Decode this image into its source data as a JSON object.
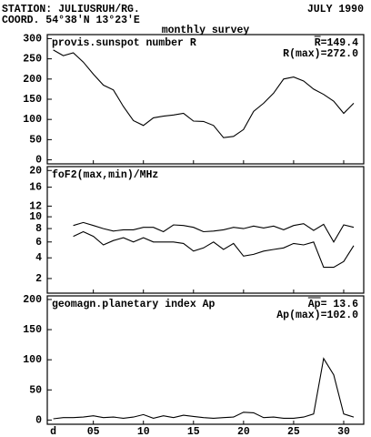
{
  "header": {
    "station": "STATION: JULIUSRUH/RG.",
    "date": "JULY 1990",
    "coord": "COORD. 54°38'N 13°23'E",
    "subtitle": "monthly survey"
  },
  "chart_data": [
    {
      "type": "line",
      "title": "provis.sunspot number R",
      "annotations": [
        "R=149.4",
        "R(max)=272.0"
      ],
      "x": [
        1,
        2,
        3,
        4,
        5,
        6,
        7,
        8,
        9,
        10,
        11,
        12,
        13,
        14,
        15,
        16,
        17,
        18,
        19,
        20,
        21,
        22,
        23,
        24,
        25,
        26,
        27,
        28,
        29,
        30,
        31
      ],
      "series": [
        {
          "name": "R",
          "color": "#000000",
          "values": [
            272,
            258,
            265,
            242,
            212,
            185,
            173,
            132,
            97,
            85,
            104,
            108,
            111,
            115,
            96,
            95,
            85,
            55,
            58,
            75,
            120,
            140,
            165,
            200,
            205,
            195,
            175,
            162,
            145,
            115,
            140
          ]
        }
      ],
      "xlim": [
        0.4,
        32
      ],
      "ylim": [
        -10,
        310
      ],
      "yticks": [
        0,
        50,
        100,
        150,
        200,
        250,
        300
      ]
    },
    {
      "type": "line",
      "title": "foF2(max,min)/MHz",
      "annotations": [],
      "scale": "sqrt",
      "x": [
        1,
        2,
        3,
        4,
        5,
        6,
        7,
        8,
        9,
        10,
        11,
        12,
        13,
        14,
        15,
        16,
        17,
        18,
        19,
        20,
        21,
        22,
        23,
        24,
        25,
        26,
        27,
        28,
        29,
        30,
        31
      ],
      "series": [
        {
          "name": "max",
          "color": "#000000",
          "values": [
            null,
            null,
            8.5,
            9,
            8.5,
            8,
            7.6,
            7.8,
            7.8,
            8.2,
            8.2,
            7.5,
            8.6,
            8.5,
            8.2,
            7.5,
            7.6,
            7.8,
            8.2,
            8,
            8.4,
            8.1,
            8.4,
            7.8,
            8.5,
            8.8,
            7.7,
            8.7,
            6,
            8.6,
            8.2
          ]
        },
        {
          "name": "min",
          "color": "#000000",
          "values": [
            null,
            null,
            6.8,
            7.5,
            6.8,
            5.6,
            6.2,
            6.6,
            6,
            6.6,
            6,
            6,
            6,
            5.8,
            4.8,
            5.2,
            6,
            5,
            5.8,
            4.2,
            4.4,
            4.8,
            5,
            5.2,
            5.8,
            5.6,
            6,
            3,
            3,
            3.6,
            5.5
          ]
        }
      ],
      "xlim": [
        0.4,
        32
      ],
      "ylim": [
        1,
        21
      ],
      "yticks": [
        2,
        4,
        6,
        8,
        10,
        12,
        16,
        20
      ]
    },
    {
      "type": "line",
      "title": "geomagn.planetary index Ap",
      "annotations": [
        "Ap= 13.6",
        "Ap(max)=102.0"
      ],
      "x": [
        1,
        2,
        3,
        4,
        5,
        6,
        7,
        8,
        9,
        10,
        11,
        12,
        13,
        14,
        15,
        16,
        17,
        18,
        19,
        20,
        21,
        22,
        23,
        24,
        25,
        26,
        27,
        28,
        29,
        30,
        31
      ],
      "series": [
        {
          "name": "Ap",
          "color": "#000000",
          "values": [
            2,
            4,
            4,
            5,
            7,
            4,
            5,
            3,
            5,
            9,
            3,
            7,
            4,
            8,
            6,
            4,
            3,
            4,
            5,
            13,
            12,
            4,
            5,
            3,
            3,
            5,
            10,
            102,
            75,
            10,
            5
          ]
        }
      ],
      "xlim": [
        0.4,
        32
      ],
      "ylim": [
        -7,
        206
      ],
      "yticks": [
        0,
        50,
        100,
        150,
        200
      ],
      "xlabel": "d",
      "xticks": [
        {
          "value": 5,
          "label": "05"
        },
        10,
        15,
        20,
        25,
        30
      ]
    }
  ]
}
